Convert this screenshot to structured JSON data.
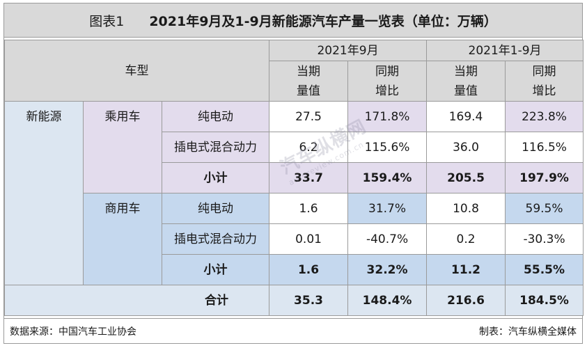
{
  "title": {
    "label": "图表1",
    "text": "2021年9月及1-9月新能源汽车产量一览表（单位：万辆）"
  },
  "header": {
    "vehicle_type": "车型",
    "period_sep": "2021年9月",
    "period_ytd": "2021年1-9月",
    "col_value_line1": "当期",
    "col_value_line2": "量值",
    "col_growth_line1": "同期",
    "col_growth_line2": "增比"
  },
  "category": "新能源",
  "groups": [
    {
      "name": "乘用车",
      "rows": [
        {
          "type": "纯电动",
          "sep_value": "27.5",
          "sep_growth": "171.8%",
          "ytd_value": "169.4",
          "ytd_growth": "223.8%"
        },
        {
          "type": "插电式混合动力",
          "sep_value": "6.2",
          "sep_growth": "115.6%",
          "ytd_value": "36.0",
          "ytd_growth": "116.5%"
        }
      ],
      "subtotal": {
        "label": "小计",
        "sep_value": "33.7",
        "sep_growth": "159.4%",
        "ytd_value": "205.5",
        "ytd_growth": "197.9%"
      }
    },
    {
      "name": "商用车",
      "rows": [
        {
          "type": "纯电动",
          "sep_value": "1.6",
          "sep_growth": "31.7%",
          "ytd_value": "10.8",
          "ytd_growth": "59.5%"
        },
        {
          "type": "插电式混合动力",
          "sep_value": "0.01",
          "sep_growth": "-40.7%",
          "ytd_value": "0.2",
          "ytd_growth": "-30.3%"
        }
      ],
      "subtotal": {
        "label": "小计",
        "sep_value": "1.6",
        "sep_growth": "32.2%",
        "ytd_value": "11.2",
        "ytd_growth": "55.5%"
      }
    }
  ],
  "total": {
    "label": "合计",
    "sep_value": "35.3",
    "sep_growth": "148.4%",
    "ytd_value": "216.6",
    "ytd_growth": "184.5%"
  },
  "footer": {
    "source": "数据来源：中国汽车工业协会",
    "maker": "制表：汽车纵横全媒体"
  },
  "watermark": {
    "text": "汽车纵横网",
    "url": "autoreview.com.cn"
  }
}
